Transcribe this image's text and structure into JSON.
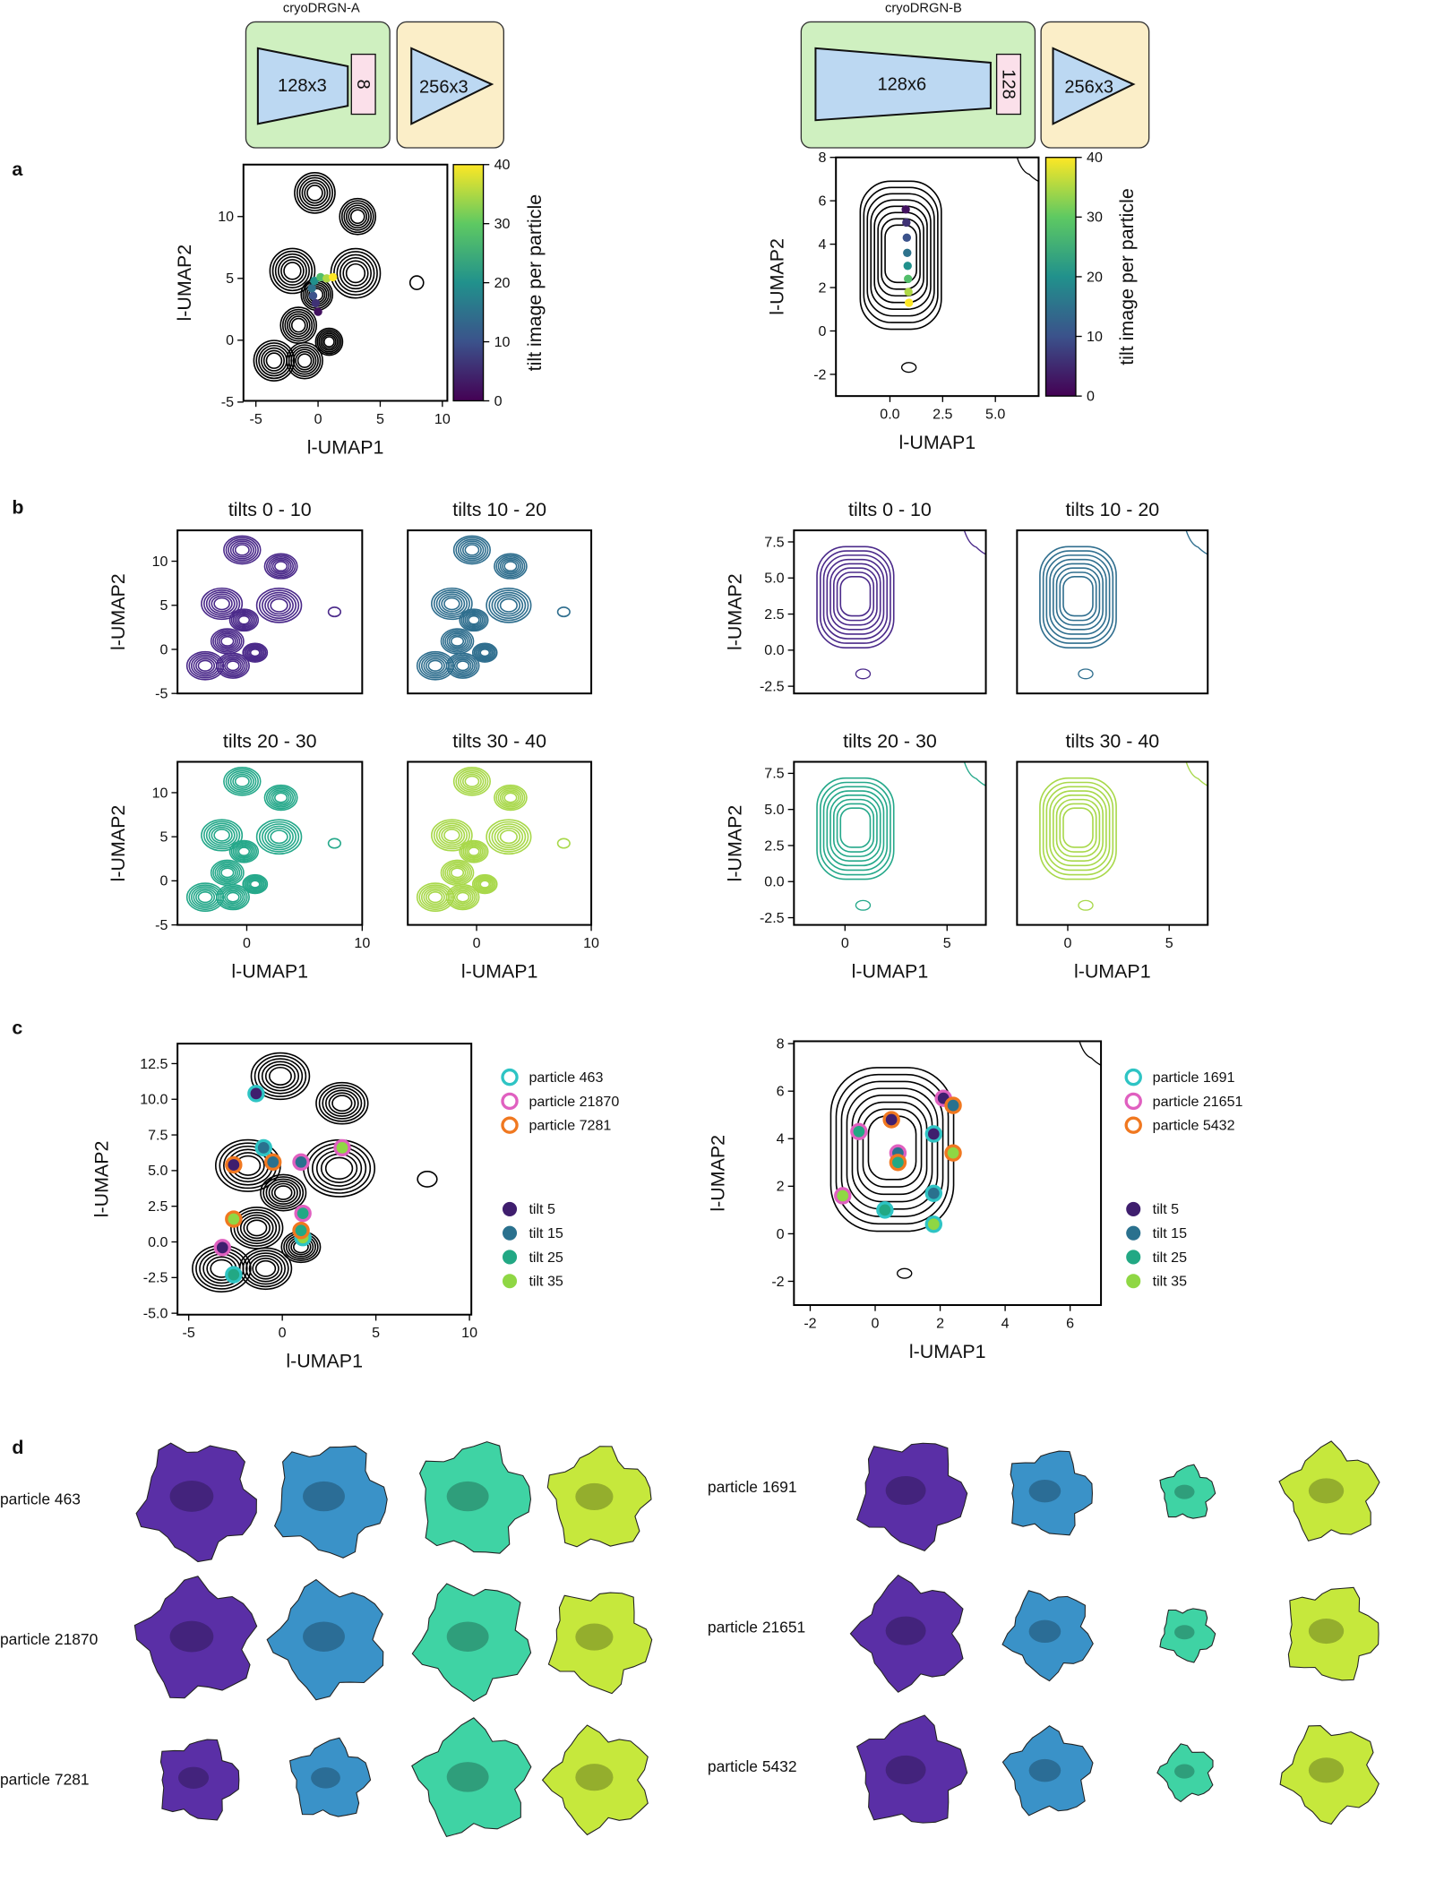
{
  "architectures": [
    {
      "title": "cryoDRGN-A",
      "encoder": "128x3",
      "latent": "8",
      "decoder": "256x3"
    },
    {
      "title": "cryoDRGN-B",
      "encoder": "128x6",
      "latent": "128",
      "decoder": "256x3"
    }
  ],
  "panel_labels": [
    "a",
    "b",
    "c",
    "d"
  ],
  "chart_data": [
    {
      "type": "contour",
      "xlabel": "l-UMAP1",
      "ylabel": "l-UMAP2",
      "xlim": [
        -6,
        10.4
      ],
      "ylim": [
        -4.9,
        14.2
      ],
      "xticks": [
        -5,
        0,
        5,
        10
      ],
      "yticks": [
        -5,
        0,
        5,
        10
      ],
      "color": "#000000",
      "colorbar": {
        "label": "tilt image per particle",
        "lim": [
          0,
          40
        ],
        "ticks": [
          0,
          10,
          20,
          30,
          40
        ],
        "colors": [
          "#440154",
          "#3b528b",
          "#21918c",
          "#5ec962",
          "#fde725"
        ]
      },
      "trajectory": {
        "x": [
          0,
          -0.2,
          -0.4,
          -0.5,
          -0.3,
          0.2,
          0.7,
          1.2
        ],
        "y": [
          2.3,
          3,
          3.6,
          4.2,
          4.8,
          5.1,
          5,
          5.1
        ],
        "c": [
          2,
          6,
          10,
          15,
          20,
          28,
          35,
          40
        ]
      }
    },
    {
      "type": "contour",
      "xlabel": "l-UMAP1",
      "ylabel": "l-UMAP2",
      "xlim": [
        -2.56,
        7.05
      ],
      "ylim": [
        -3,
        8
      ],
      "xticks": [
        {
          "value": 0,
          "label": "0.0"
        },
        2.5,
        {
          "value": 5,
          "label": "5.0"
        }
      ],
      "yticks": [
        -2,
        0,
        2,
        4,
        6,
        8
      ],
      "color": "#000000",
      "colorbar": {
        "label": "tilt image per particle",
        "lim": [
          0,
          40
        ],
        "ticks": [
          0,
          10,
          20,
          30,
          40
        ],
        "colors": [
          "#440154",
          "#3b528b",
          "#21918c",
          "#5ec962",
          "#fde725"
        ]
      },
      "trajectory": {
        "x": [
          0.75,
          0.78,
          0.8,
          0.82,
          0.84,
          0.86,
          0.88,
          0.9
        ],
        "y": [
          5.6,
          5,
          4.3,
          3.6,
          3,
          2.4,
          1.8,
          1.3
        ],
        "c": [
          2,
          6,
          10,
          15,
          20,
          28,
          35,
          40
        ]
      }
    },
    {
      "type": "contour",
      "title": "tilts 0 - 10",
      "ylabel": "l-UMAP2",
      "xlim": [
        -6,
        10
      ],
      "ylim": [
        -5,
        13.5
      ],
      "xticks": [],
      "yticks": [
        -5,
        0,
        5,
        10
      ],
      "color": "#4b2a8a"
    },
    {
      "type": "contour",
      "title": "tilts 10 - 20",
      "xlim": [
        -6,
        10
      ],
      "ylim": [
        -5,
        13.5
      ],
      "xticks": [],
      "yticks": [],
      "color": "#2f6e8e"
    },
    {
      "type": "contour",
      "title": "tilts 20 - 30",
      "xlabel": "l-UMAP1",
      "ylabel": "l-UMAP2",
      "xlim": [
        -6,
        10
      ],
      "ylim": [
        -5,
        13.5
      ],
      "xticks": [
        0,
        10
      ],
      "yticks": [
        -5,
        0,
        5,
        10
      ],
      "color": "#25a88a"
    },
    {
      "type": "contour",
      "title": "tilts 30 - 40",
      "xlabel": "l-UMAP1",
      "xlim": [
        -6,
        10
      ],
      "ylim": [
        -5,
        13.5
      ],
      "xticks": [
        0,
        10
      ],
      "yticks": [],
      "color": "#a8d84a"
    },
    {
      "type": "contour",
      "title": "tilts 0 - 10",
      "ylabel": "l-UMAP2",
      "xlim": [
        -2.5,
        6.9
      ],
      "ylim": [
        -3,
        8.3
      ],
      "xticks": [],
      "yticks": [
        -2.5,
        {
          "value": 0,
          "label": "0.0"
        },
        2.5,
        {
          "value": 5,
          "label": "5.0"
        },
        7.5
      ],
      "color": "#4b2a8a"
    },
    {
      "type": "contour",
      "title": "tilts 10 - 20",
      "xlim": [
        -2.5,
        6.9
      ],
      "ylim": [
        -3,
        8.3
      ],
      "xticks": [],
      "yticks": [],
      "color": "#2f6e8e"
    },
    {
      "type": "contour",
      "title": "tilts 20 - 30",
      "xlabel": "l-UMAP1",
      "ylabel": "l-UMAP2",
      "xlim": [
        -2.5,
        6.9
      ],
      "ylim": [
        -3,
        8.3
      ],
      "xticks": [
        0,
        5
      ],
      "yticks": [
        -2.5,
        {
          "value": 0,
          "label": "0.0"
        },
        2.5,
        {
          "value": 5,
          "label": "5.0"
        },
        7.5
      ],
      "color": "#25a88a"
    },
    {
      "type": "contour",
      "title": "tilts 30 - 40",
      "xlabel": "l-UMAP1",
      "xlim": [
        -2.5,
        6.9
      ],
      "ylim": [
        -3,
        8.3
      ],
      "xticks": [
        0,
        5
      ],
      "yticks": [],
      "color": "#a8d84a"
    },
    {
      "type": "scatter",
      "xlabel": "l-UMAP1",
      "ylabel": "l-UMAP2",
      "xlim": [
        -5.6,
        10.1
      ],
      "ylim": [
        -5.1,
        13.9
      ],
      "xticks": [
        -5,
        0,
        5,
        10
      ],
      "yticks": [
        {
          "value": -5,
          "label": "-5.0"
        },
        -2.5,
        {
          "value": 0,
          "label": "0.0"
        },
        2.5,
        {
          "value": 5,
          "label": "5.0"
        },
        7.5,
        {
          "value": 10,
          "label": "10.0"
        },
        12.5
      ],
      "color": "#000000",
      "series": [
        {
          "name": "particle 463",
          "color": "#2ec4c4",
          "x": [
            -1.4,
            -1.0,
            -2.6,
            1.1
          ],
          "y": [
            10.4,
            6.6,
            -2.3,
            0.3
          ]
        },
        {
          "name": "particle 21870",
          "color": "#e060c0",
          "x": [
            -3.2,
            1.0,
            1.1,
            3.2
          ],
          "y": [
            -0.4,
            5.6,
            2.0,
            6.6
          ]
        },
        {
          "name": "particle 7281",
          "color": "#f07820",
          "x": [
            -2.6,
            -0.5,
            1.0,
            -2.6
          ],
          "y": [
            5.4,
            5.6,
            0.8,
            1.6
          ]
        }
      ],
      "tilt_legend": [
        {
          "name": "tilt 5",
          "color": "#3f1e6e"
        },
        {
          "name": "tilt 15",
          "color": "#2a718e"
        },
        {
          "name": "tilt 25",
          "color": "#22a884"
        },
        {
          "name": "tilt 35",
          "color": "#8fd744"
        }
      ]
    },
    {
      "type": "scatter",
      "xlabel": "l-UMAP1",
      "ylabel": "l-UMAP2",
      "xlim": [
        -2.5,
        6.95
      ],
      "ylim": [
        -3,
        8.1
      ],
      "xticks": [
        -2,
        0,
        2,
        4,
        6
      ],
      "yticks": [
        -2,
        0,
        2,
        4,
        6,
        8
      ],
      "color": "#000000",
      "series": [
        {
          "name": "particle 1691",
          "color": "#2ec4c4",
          "x": [
            1.8,
            1.8,
            0.3,
            1.8
          ],
          "y": [
            4.2,
            1.7,
            1.0,
            0.4
          ]
        },
        {
          "name": "particle 21651",
          "color": "#e060c0",
          "x": [
            2.1,
            0.7,
            -0.5,
            -1.0
          ],
          "y": [
            5.7,
            3.4,
            4.3,
            1.6
          ]
        },
        {
          "name": "particle 5432",
          "color": "#f07820",
          "x": [
            0.5,
            2.4,
            0.7,
            2.4
          ],
          "y": [
            4.8,
            5.4,
            3.0,
            3.4
          ]
        }
      ],
      "tilt_legend": [
        {
          "name": "tilt 5",
          "color": "#3f1e6e"
        },
        {
          "name": "tilt 15",
          "color": "#2a718e"
        },
        {
          "name": "tilt 25",
          "color": "#22a884"
        },
        {
          "name": "tilt 35",
          "color": "#8fd744"
        }
      ]
    }
  ],
  "volumes": {
    "left": [
      "particle 463",
      "particle 21870",
      "particle 7281"
    ],
    "right": [
      "particle 1691",
      "particle 21651",
      "particle 5432"
    ]
  }
}
